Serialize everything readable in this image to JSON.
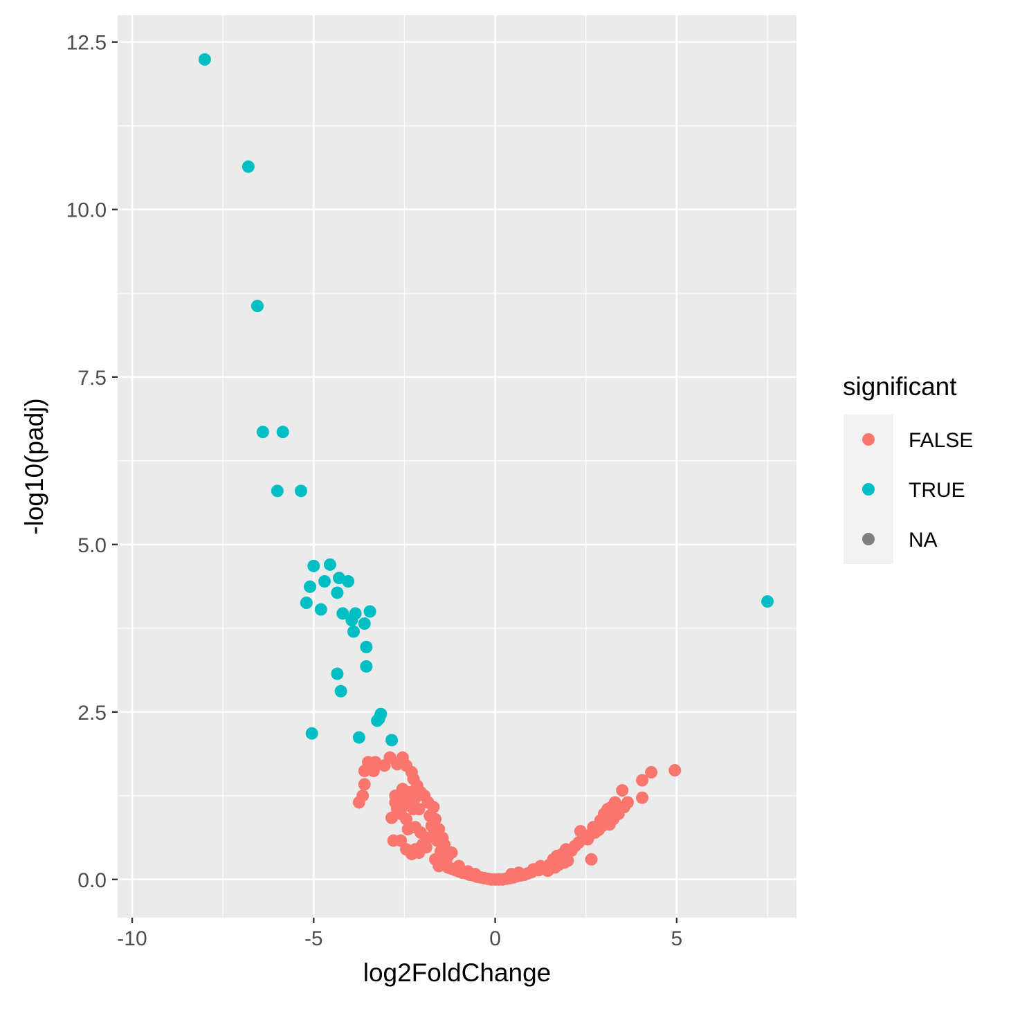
{
  "chart_data": {
    "type": "scatter",
    "title": "",
    "xlabel": "log2FoldChange",
    "ylabel": "-log10(padj)",
    "xlim": [
      -10.4,
      8.3
    ],
    "ylim": [
      -0.57,
      12.9
    ],
    "x_ticks": [
      -10,
      -5,
      0,
      5
    ],
    "x_tick_labels": [
      "-10",
      "-5",
      "0",
      "5"
    ],
    "y_ticks": [
      0,
      2.5,
      5,
      7.5,
      10,
      12.5
    ],
    "y_tick_labels": [
      "0.0",
      "2.5",
      "5.0",
      "7.5",
      "10.0",
      "12.5"
    ],
    "grid": true,
    "background": "#ebebeb",
    "legend": {
      "title": "significant",
      "placement": "right",
      "entries": [
        {
          "label": "FALSE",
          "color": "#f8766d"
        },
        {
          "label": "TRUE",
          "color": "#00bfc4"
        },
        {
          "label": "NA",
          "color": "#7f7f7f"
        }
      ]
    },
    "series": [
      {
        "name": "TRUE",
        "color": "#00bfc4",
        "points": [
          [
            -8.0,
            12.24
          ],
          [
            -6.8,
            10.64
          ],
          [
            -6.55,
            8.56
          ],
          [
            -6.4,
            6.68
          ],
          [
            -5.85,
            6.68
          ],
          [
            -6.0,
            5.8
          ],
          [
            -5.35,
            5.8
          ],
          [
            -5.0,
            4.68
          ],
          [
            -4.55,
            4.7
          ],
          [
            -5.1,
            4.37
          ],
          [
            -4.7,
            4.45
          ],
          [
            -4.3,
            4.5
          ],
          [
            -4.05,
            4.45
          ],
          [
            -4.35,
            4.28
          ],
          [
            -5.2,
            4.13
          ],
          [
            -4.8,
            4.03
          ],
          [
            -4.2,
            3.97
          ],
          [
            -3.85,
            3.97
          ],
          [
            -3.45,
            4.0
          ],
          [
            -3.95,
            3.87
          ],
          [
            -3.6,
            3.82
          ],
          [
            -3.9,
            3.7
          ],
          [
            -3.55,
            3.47
          ],
          [
            -3.55,
            3.18
          ],
          [
            -4.35,
            3.07
          ],
          [
            -4.25,
            2.81
          ],
          [
            -3.15,
            2.47
          ],
          [
            -3.2,
            2.4
          ],
          [
            -3.25,
            2.37
          ],
          [
            -5.05,
            2.18
          ],
          [
            -3.75,
            2.12
          ],
          [
            -2.85,
            2.08
          ],
          [
            7.5,
            4.15
          ]
        ]
      },
      {
        "name": "FALSE",
        "color": "#f8766d",
        "points": [
          [
            4.95,
            1.63
          ],
          [
            4.3,
            1.6
          ],
          [
            4.05,
            1.48
          ],
          [
            4.05,
            1.22
          ],
          [
            3.5,
            1.33
          ],
          [
            3.65,
            1.15
          ],
          [
            3.3,
            1.15
          ],
          [
            3.2,
            1.08
          ],
          [
            3.1,
            1.05
          ],
          [
            3.0,
            0.98
          ],
          [
            3.4,
            0.98
          ],
          [
            3.55,
            1.08
          ],
          [
            3.25,
            0.9
          ],
          [
            3.15,
            0.82
          ],
          [
            2.95,
            0.8
          ],
          [
            2.85,
            0.74
          ],
          [
            2.75,
            0.7
          ],
          [
            2.6,
            0.66
          ],
          [
            2.45,
            0.62
          ],
          [
            2.3,
            0.55
          ],
          [
            2.2,
            0.5
          ],
          [
            2.35,
            0.72
          ],
          [
            2.55,
            0.6
          ],
          [
            2.1,
            0.43
          ],
          [
            1.95,
            0.45
          ],
          [
            1.85,
            0.38
          ],
          [
            1.7,
            0.35
          ],
          [
            1.6,
            0.3
          ],
          [
            2.65,
            0.3
          ],
          [
            2.0,
            0.28
          ],
          [
            1.9,
            0.25
          ],
          [
            1.75,
            0.22
          ],
          [
            1.5,
            0.22
          ],
          [
            1.35,
            0.16
          ],
          [
            1.2,
            0.14
          ],
          [
            1.0,
            0.11
          ],
          [
            0.9,
            0.09
          ],
          [
            0.8,
            0.07
          ],
          [
            0.7,
            0.06
          ],
          [
            0.6,
            0.05
          ],
          [
            0.5,
            0.03
          ],
          [
            0.4,
            0.02
          ],
          [
            0.3,
            0.01
          ],
          [
            0.2,
            0.0
          ],
          [
            0.1,
            0.0
          ],
          [
            0.0,
            0.0
          ],
          [
            -0.1,
            0.0
          ],
          [
            -0.2,
            0.01
          ],
          [
            -0.3,
            0.02
          ],
          [
            -0.4,
            0.03
          ],
          [
            -0.5,
            0.04
          ],
          [
            -0.6,
            0.06
          ],
          [
            -0.7,
            0.07
          ],
          [
            -0.8,
            0.09
          ],
          [
            -0.9,
            0.1
          ],
          [
            -1.0,
            0.12
          ],
          [
            -1.1,
            0.14
          ],
          [
            -1.2,
            0.16
          ],
          [
            -1.3,
            0.18
          ],
          [
            -1.35,
            0.25
          ],
          [
            -1.45,
            0.28
          ],
          [
            -1.55,
            0.2
          ],
          [
            -1.65,
            0.3
          ],
          [
            -1.5,
            0.42
          ],
          [
            -1.4,
            0.52
          ],
          [
            -1.6,
            0.58
          ],
          [
            -1.7,
            0.66
          ],
          [
            -1.55,
            0.75
          ],
          [
            -1.75,
            0.8
          ],
          [
            -1.65,
            0.9
          ],
          [
            -1.85,
            0.62
          ],
          [
            -1.9,
            0.48
          ],
          [
            -2.0,
            0.52
          ],
          [
            -2.1,
            0.4
          ],
          [
            -2.2,
            0.45
          ],
          [
            -2.3,
            0.38
          ],
          [
            -2.45,
            0.45
          ],
          [
            -2.6,
            0.58
          ],
          [
            -2.8,
            0.58
          ],
          [
            -2.4,
            0.75
          ],
          [
            -2.2,
            0.78
          ],
          [
            -2.05,
            0.7
          ],
          [
            -1.8,
            0.95
          ],
          [
            -1.7,
            1.08
          ],
          [
            -1.85,
            1.15
          ],
          [
            -1.95,
            1.25
          ],
          [
            -2.05,
            1.3
          ],
          [
            -2.15,
            1.4
          ],
          [
            -2.25,
            1.5
          ],
          [
            -2.3,
            1.6
          ],
          [
            -2.45,
            1.7
          ],
          [
            -2.55,
            1.82
          ],
          [
            -2.7,
            1.72
          ],
          [
            -2.9,
            1.82
          ],
          [
            -3.05,
            1.7
          ],
          [
            -3.3,
            1.75
          ],
          [
            -3.5,
            1.75
          ],
          [
            -3.6,
            1.62
          ],
          [
            -3.35,
            1.62
          ],
          [
            -3.6,
            1.42
          ],
          [
            -3.75,
            1.15
          ],
          [
            -3.65,
            1.25
          ],
          [
            -2.55,
            1.35
          ],
          [
            -2.6,
            1.25
          ],
          [
            -2.75,
            1.25
          ],
          [
            -2.4,
            1.2
          ],
          [
            -2.25,
            1.05
          ],
          [
            -2.1,
            1.05
          ],
          [
            -2.5,
            1.1
          ],
          [
            -2.7,
            1.05
          ],
          [
            -2.85,
            0.92
          ],
          [
            -2.45,
            0.9
          ],
          [
            -2.6,
            0.98
          ],
          [
            -2.75,
            1.15
          ],
          [
            -2.2,
            1.22
          ],
          [
            -2.35,
            1.3
          ],
          [
            -1.3,
            0.35
          ],
          [
            -1.2,
            0.4
          ],
          [
            -1.45,
            0.62
          ],
          [
            -1.0,
            0.2
          ],
          [
            -0.75,
            0.12
          ],
          [
            -0.55,
            0.08
          ],
          [
            0.45,
            0.08
          ],
          [
            0.65,
            0.1
          ],
          [
            1.05,
            0.15
          ],
          [
            1.25,
            0.2
          ],
          [
            1.45,
            0.13
          ],
          [
            1.65,
            0.18
          ],
          [
            2.7,
            0.78
          ],
          [
            2.9,
            0.88
          ]
        ]
      }
    ]
  }
}
